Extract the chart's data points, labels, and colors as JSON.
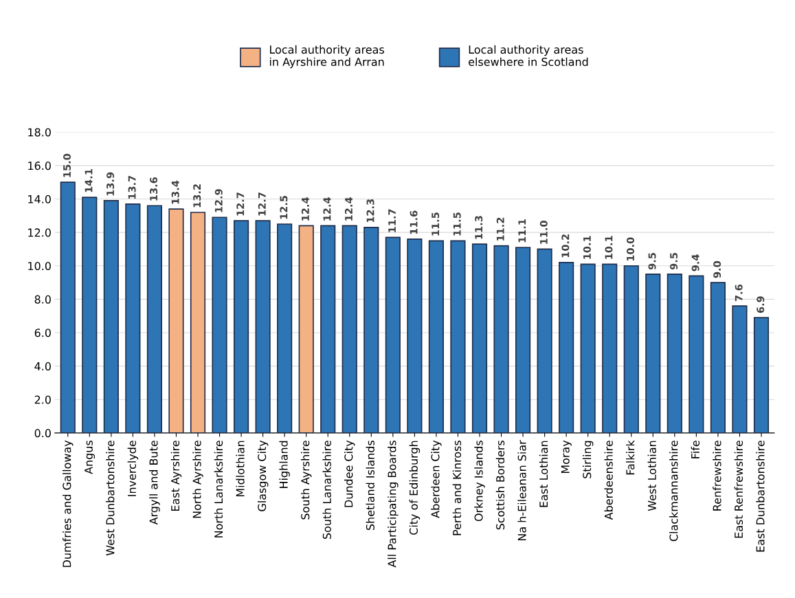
{
  "chart_data": {
    "type": "bar",
    "categories": [
      "Dumfries and Galloway",
      "Angus",
      "West Dunbartonshire",
      "Inverclyde",
      "Argyll and Bute",
      "East Ayrshire",
      "North Ayrshire",
      "North Lanarkshire",
      "Midlothian",
      "Glasgow City",
      "Highland",
      "South Ayrshire",
      "South Lanarkshire",
      "Dundee City",
      "Shetland Islands",
      "All Participating Boards",
      "City of Edinburgh",
      "Aberdeen City",
      "Perth and Kinross",
      "Orkney Islands",
      "Scottish Borders",
      "Na h-Eileanan Siar",
      "East Lothian",
      "Moray",
      "Stirling",
      "Aberdeenshire",
      "Falkirk",
      "West Lothian",
      "Clackmannanshire",
      "Fife",
      "Renfrewshire",
      "East Renfrewshire",
      "East Dunbartonshire"
    ],
    "series": [
      {
        "name": "Local authority areas\nin Ayrshire and Arran",
        "color": "#f4b183",
        "values": [
          null,
          null,
          null,
          null,
          null,
          13.4,
          13.2,
          null,
          null,
          null,
          null,
          12.4,
          null,
          null,
          null,
          null,
          null,
          null,
          null,
          null,
          null,
          null,
          null,
          null,
          null,
          null,
          null,
          null,
          null,
          null,
          null,
          null,
          null
        ],
        "value_labels": [
          null,
          null,
          null,
          null,
          null,
          "13.4",
          "13.2",
          null,
          null,
          null,
          null,
          "12.4",
          null,
          null,
          null,
          null,
          null,
          null,
          null,
          null,
          null,
          null,
          null,
          null,
          null,
          null,
          null,
          null,
          null,
          null,
          null,
          null,
          null
        ]
      },
      {
        "name": "Local authority areas\nelsewhere in Scotland",
        "color": "#2e75b6",
        "values": [
          15.0,
          14.1,
          13.9,
          13.7,
          13.6,
          null,
          null,
          12.9,
          12.7,
          12.7,
          12.5,
          null,
          12.4,
          12.4,
          12.3,
          11.7,
          11.6,
          11.5,
          11.5,
          11.3,
          11.2,
          11.1,
          11.0,
          10.2,
          10.1,
          10.1,
          10.0,
          9.5,
          9.5,
          9.4,
          9.0,
          7.6,
          6.9
        ],
        "value_labels": [
          "15.0",
          "14.1",
          "13.9",
          "13.7",
          "13.6",
          null,
          null,
          "12.9",
          "12.7",
          "12.7",
          "12.5",
          null,
          "12.4",
          "12.4",
          "12.3",
          "11.7",
          "11.6",
          "11.5",
          "11.5",
          "11.3",
          "11.2",
          "11.1",
          "11.0",
          "10.2",
          "10.1",
          "10.1",
          "10.0",
          "9.5",
          "9.5",
          "9.4",
          "9.0",
          "7.6",
          "6.9"
        ]
      }
    ],
    "ylim": [
      0,
      18
    ],
    "yticks": [
      {
        "value": 0,
        "label": "0.0"
      },
      {
        "value": 2,
        "label": "2.0"
      },
      {
        "value": 4,
        "label": "4.0"
      },
      {
        "value": 6,
        "label": "6.0"
      },
      {
        "value": 8,
        "label": "8.0"
      },
      {
        "value": 10,
        "label": "10.0"
      },
      {
        "value": 12,
        "label": "12.0"
      },
      {
        "value": 14,
        "label": "14.0"
      },
      {
        "value": 16,
        "label": "16.0"
      },
      {
        "value": 18,
        "label": "18.0"
      }
    ],
    "grid": "y",
    "legend": "top"
  }
}
